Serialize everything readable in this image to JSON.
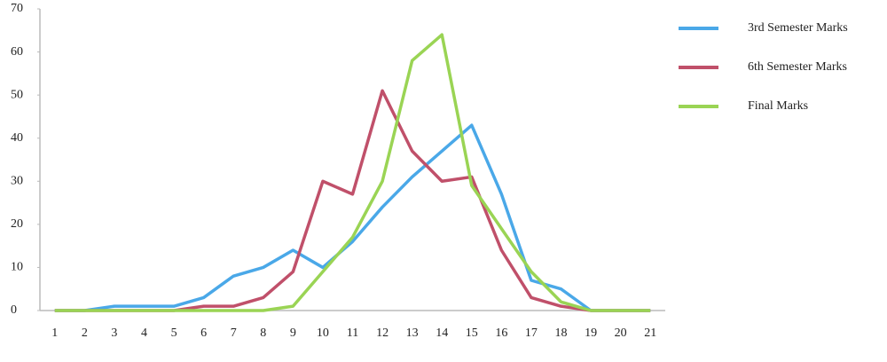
{
  "chart_data": {
    "type": "line",
    "categories": [
      "1",
      "2",
      "3",
      "4",
      "5",
      "6",
      "7",
      "8",
      "9",
      "10",
      "11",
      "12",
      "13",
      "14",
      "15",
      "16",
      "17",
      "18",
      "19",
      "20",
      "21"
    ],
    "series": [
      {
        "name": "3rd Semester Marks",
        "color": "#4aa8e8",
        "values": [
          0,
          0,
          1,
          1,
          1,
          3,
          8,
          10,
          14,
          10,
          16,
          24,
          31,
          37,
          43,
          27,
          7,
          5,
          0,
          0,
          0
        ]
      },
      {
        "name": "6th Semester Marks",
        "color": "#c0506a",
        "values": [
          0,
          0,
          0,
          0,
          0,
          1,
          1,
          3,
          9,
          30,
          27,
          51,
          37,
          30,
          31,
          14,
          3,
          1,
          0,
          0,
          0
        ]
      },
      {
        "name": "Final Marks",
        "color": "#9ad454",
        "values": [
          0,
          0,
          0,
          0,
          0,
          0,
          0,
          0,
          1,
          9,
          17,
          30,
          58,
          64,
          29,
          19,
          9,
          2,
          0,
          0,
          0
        ]
      }
    ],
    "ylim": [
      0,
      70
    ],
    "yticks": [
      0,
      10,
      20,
      30,
      40,
      50,
      60,
      70
    ],
    "legend": "right"
  }
}
